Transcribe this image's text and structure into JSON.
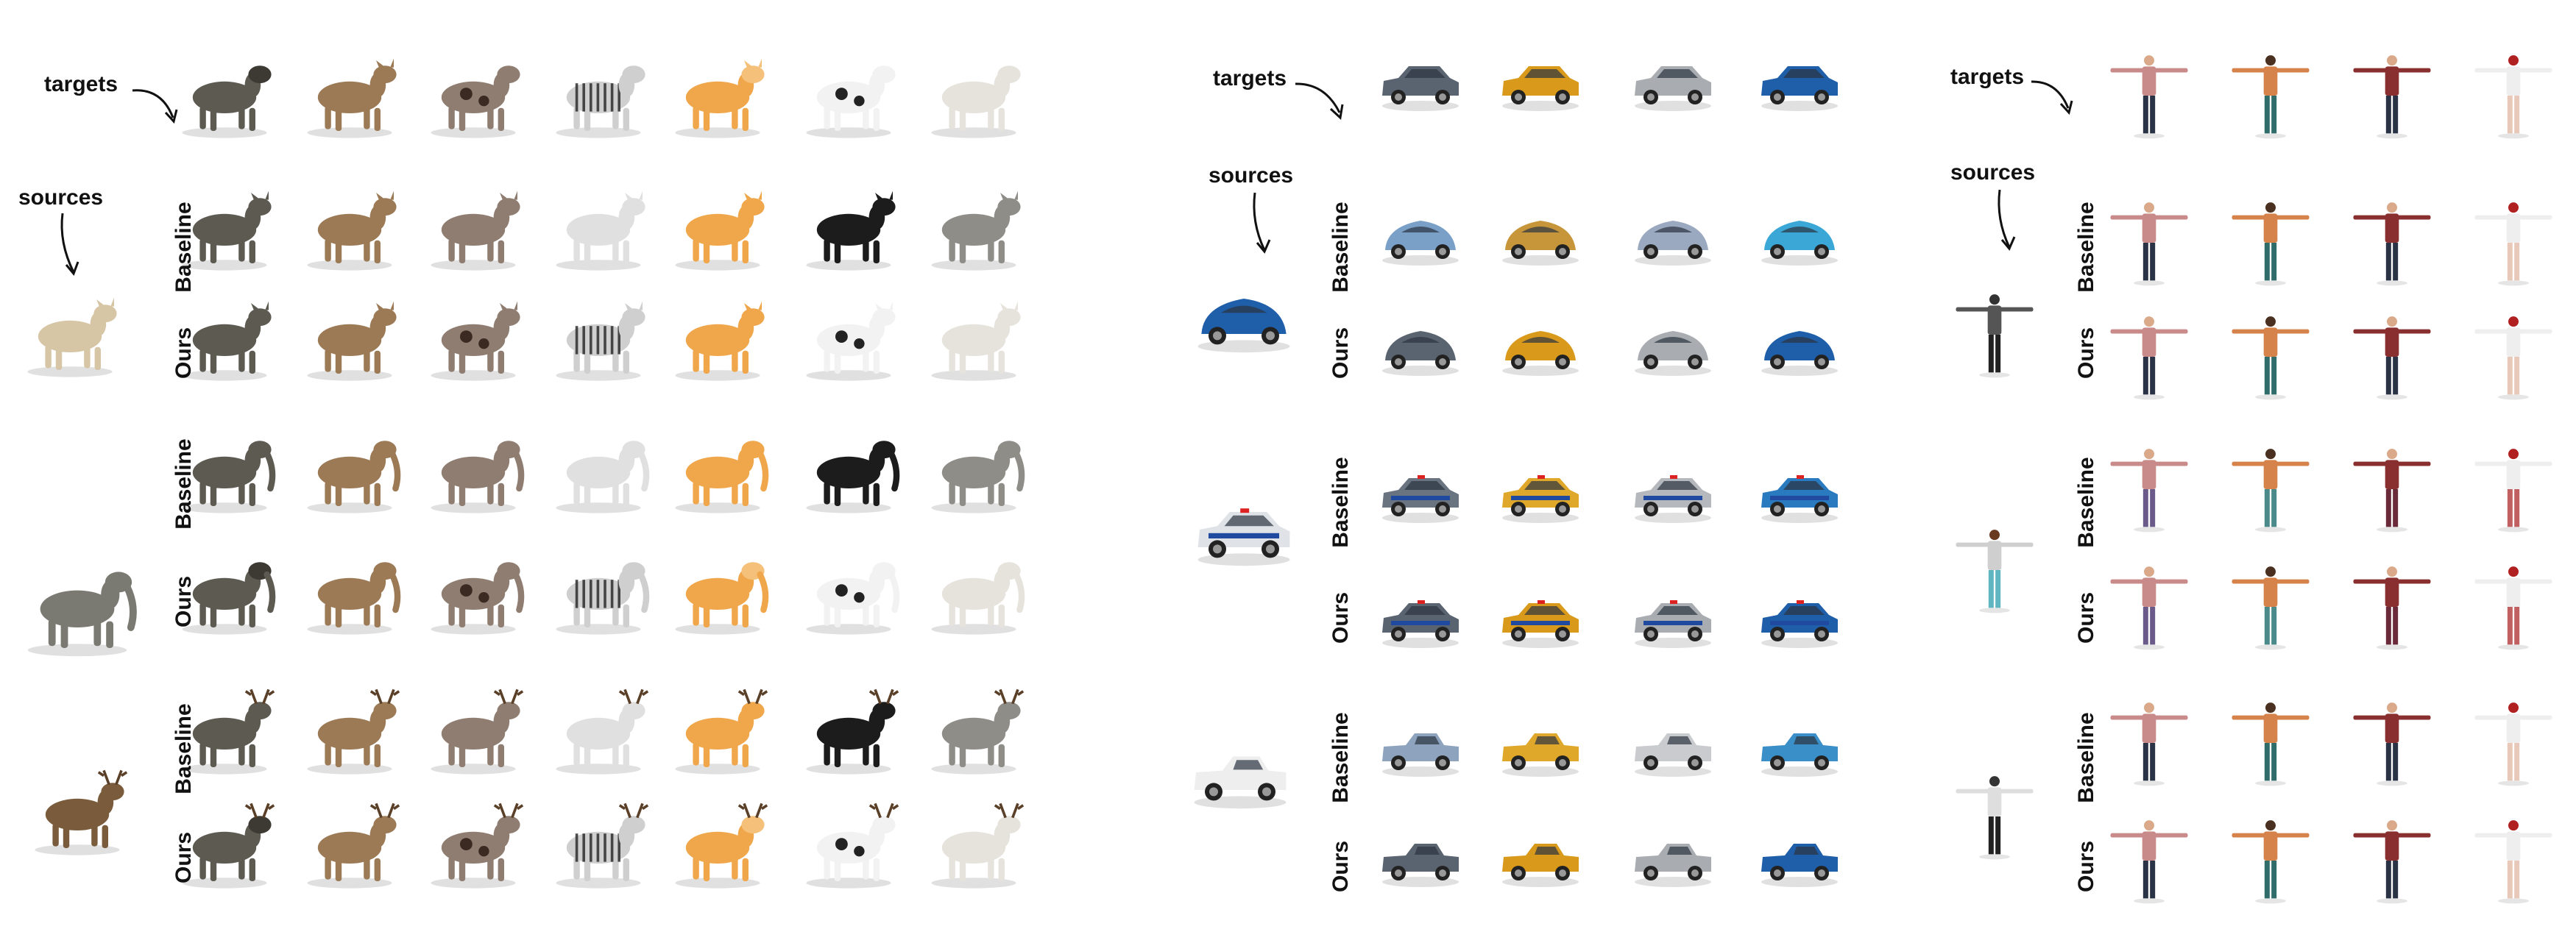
{
  "labels": {
    "targets": "targets",
    "sources": "sources",
    "baseline": "Baseline",
    "ours": "Ours"
  },
  "panels": [
    {
      "name": "animals",
      "targets": [
        "baboon",
        "fawn",
        "pinto horse",
        "zebra",
        "cartoon cat",
        "cow",
        "polar bear"
      ],
      "sources": [
        "dog",
        "elephant",
        "deer"
      ],
      "row_labels": [
        "Baseline",
        "Ours",
        "Baseline",
        "Ours",
        "Baseline",
        "Ours"
      ]
    },
    {
      "name": "cars",
      "targets": [
        "dark hatchback",
        "yellow suv",
        "silver coupe",
        "blue crossover"
      ],
      "sources": [
        "blue beetle",
        "police suv",
        "white pickup"
      ],
      "row_labels": [
        "Baseline",
        "Ours",
        "Baseline",
        "Ours",
        "Baseline",
        "Ours"
      ]
    },
    {
      "name": "humans",
      "targets": [
        "pink shirt man",
        "orange shirt man",
        "red shirt man",
        "red hair woman"
      ],
      "sources": [
        "dark shirt man",
        "woman",
        "white shirt man"
      ],
      "row_labels": [
        "Baseline",
        "Ours",
        "Baseline",
        "Ours",
        "Baseline",
        "Ours"
      ]
    }
  ],
  "colors": {
    "baboon": "#5d5a52",
    "fawn": "#9b7a55",
    "pinto": "#8e7d70",
    "zebra": "#cfcfcf",
    "cat": "#f0a64a",
    "cow": "#f2f2f2",
    "polar": "#e6e3dc",
    "dog": "#d7c6a6",
    "elephant": "#7b7a72",
    "deer": "#7a5c3c",
    "black": "#1c1c1c",
    "car_dark": "#5a6470",
    "car_yellow": "#d99a1c",
    "car_silver": "#a9adb2",
    "car_blue": "#1f5ea8",
    "car_lightblue": "#7aa0c8",
    "car_cyan": "#3aa7d6",
    "shirt_pink": "#c98a8a",
    "shirt_orange": "#d5834a",
    "shirt_red": "#8a2f2f",
    "shirt_white": "#dedede",
    "pants_dark": "#2a3346",
    "pants_teal": "#2f6c6a",
    "skin": "#d9a98a"
  }
}
